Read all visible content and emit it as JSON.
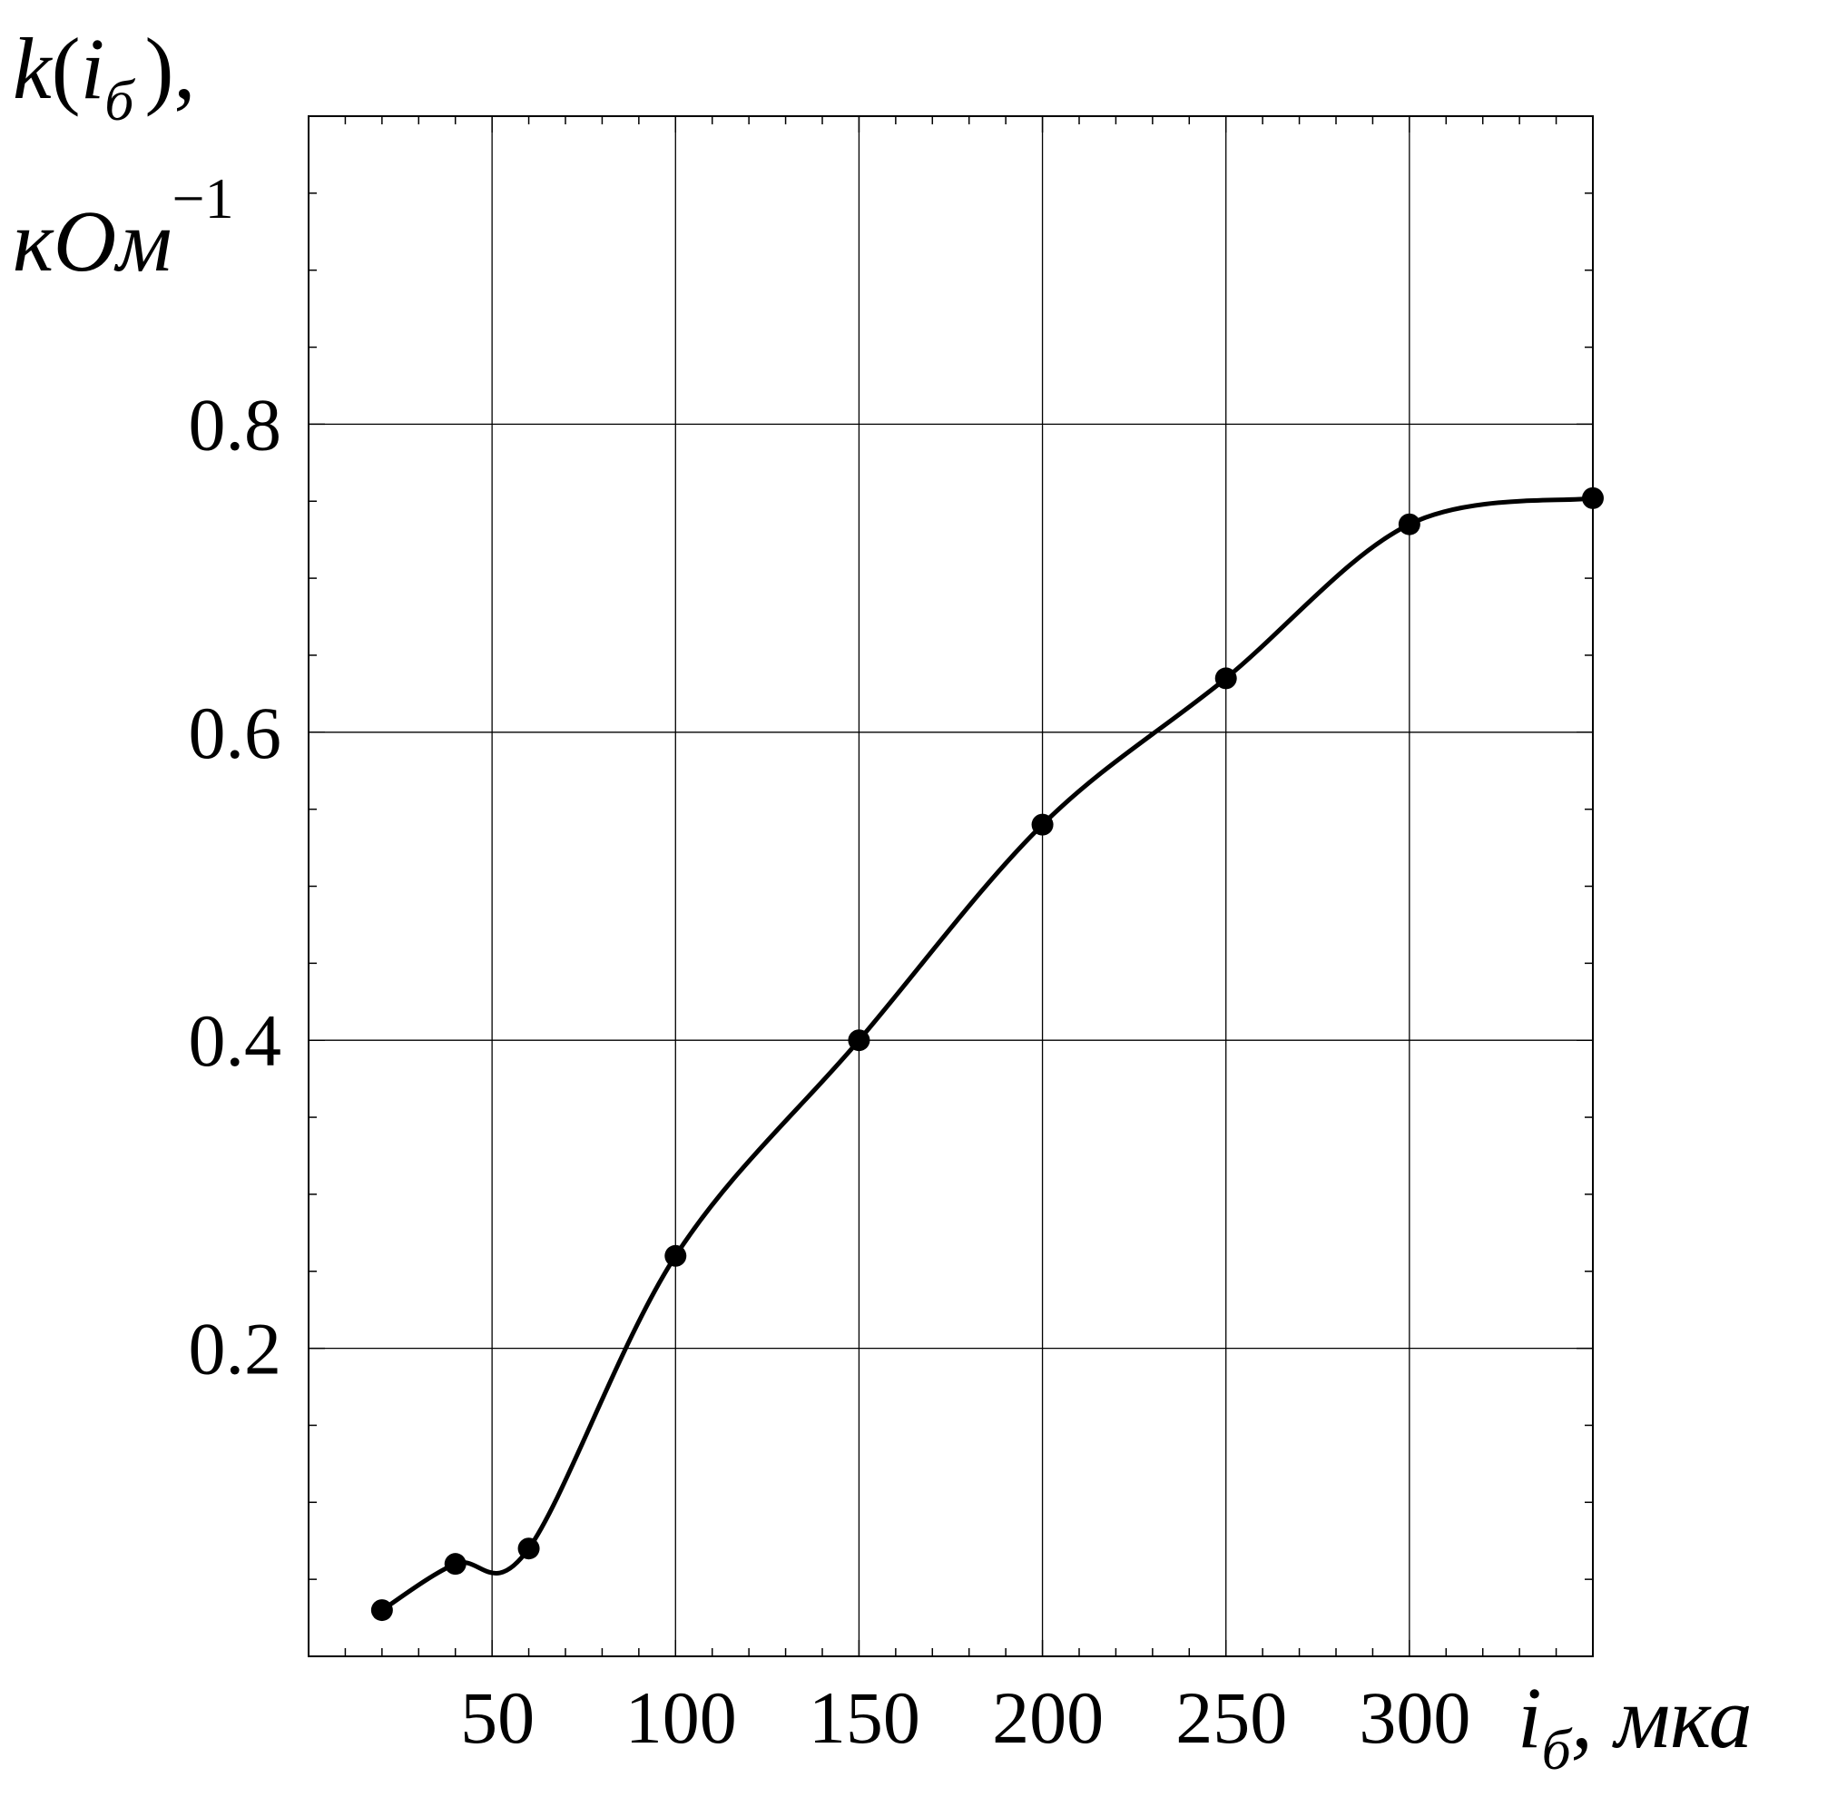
{
  "chart_data": {
    "type": "line",
    "title": "",
    "ylabel": {
      "func": "k",
      "open": "(",
      "var": "i",
      "sub": "б",
      "close": "),",
      "unit": "кОм",
      "unit_sup": "−1"
    },
    "xlabel": {
      "var": "i",
      "sub": "б",
      "unit": ", мка"
    },
    "xlim": [
      0,
      350
    ],
    "ylim": [
      0.0,
      1.0
    ],
    "x_ticks": [
      50,
      100,
      150,
      200,
      250,
      300
    ],
    "x_tick_labels": [
      "50",
      "100",
      "150",
      "200",
      "250",
      "300"
    ],
    "y_ticks": [
      0.2,
      0.4,
      0.6,
      0.8
    ],
    "y_tick_labels": [
      "0.2",
      "0.4",
      "0.6",
      "0.8"
    ],
    "x_grid": [
      50,
      100,
      150,
      200,
      250,
      300
    ],
    "y_grid": [
      0.2,
      0.4,
      0.6,
      0.8
    ],
    "grid": true,
    "series": [
      {
        "x": [
          20,
          40,
          60,
          100,
          150,
          200,
          250,
          300,
          350
        ],
        "values": [
          0.03,
          0.06,
          0.07,
          0.26,
          0.4,
          0.54,
          0.635,
          0.735,
          0.752
        ],
        "color": "#000000"
      }
    ]
  }
}
